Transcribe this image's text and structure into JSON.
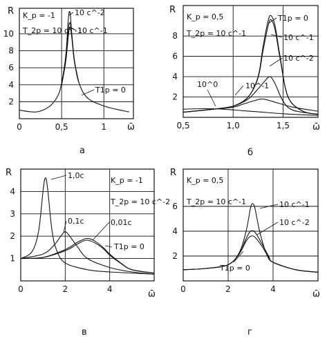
{
  "chart_data": [
    {
      "type": "line",
      "panel_label": "а",
      "ylabel": "R",
      "xlabel": "ω̄",
      "xlim": [
        0,
        1.35
      ],
      "ylim": [
        0,
        13
      ],
      "xticks": [
        0,
        0.5,
        1
      ],
      "xtick_labels": [
        "0",
        "0,5",
        "1"
      ],
      "yticks": [
        2,
        4,
        6,
        8,
        10
      ],
      "ytick_labels": [
        "2",
        "4",
        "6",
        "8",
        "10"
      ],
      "grid": true,
      "params": [
        "K_p = -1",
        "T_2p = 10 c^-1"
      ],
      "series": [
        {
          "name": "T1p = 0",
          "x": [
            0,
            0.2,
            0.35,
            0.45,
            0.5,
            0.55,
            0.58,
            0.6,
            0.62,
            0.65,
            0.7,
            0.8,
            1.0,
            1.2,
            1.3
          ],
          "y": [
            1.0,
            0.8,
            1.4,
            2.6,
            4.2,
            7.5,
            11.8,
            12.5,
            10.0,
            7.0,
            4.4,
            2.5,
            1.5,
            1.0,
            0.8
          ]
        },
        {
          "name": "10 c^-2",
          "x": [
            0.5,
            0.55,
            0.58,
            0.6,
            0.62,
            0.65,
            0.7
          ],
          "y": [
            4.0,
            7.0,
            10.5,
            11.3,
            10.0,
            7.0,
            4.4
          ]
        },
        {
          "name": "10 c^-1",
          "x": [
            0.5,
            0.55,
            0.58,
            0.6,
            0.62,
            0.65,
            0.7
          ],
          "y": [
            3.9,
            6.8,
            9.8,
            10.8,
            9.6,
            6.8,
            4.3
          ]
        }
      ],
      "annotations": [
        "10 c^-2",
        "10 c^-1",
        "T1p = 0"
      ]
    },
    {
      "type": "line",
      "panel_label": "б",
      "ylabel": "R",
      "xlabel": "ω̄",
      "xlim": [
        0.5,
        1.85
      ],
      "ylim": [
        0,
        11
      ],
      "xticks": [
        0.5,
        1.0,
        1.5
      ],
      "xtick_labels": [
        "0,5",
        "1,0",
        "1,5"
      ],
      "yticks": [
        2,
        4,
        6,
        8
      ],
      "ytick_labels": [
        "2",
        "4",
        "6",
        "8"
      ],
      "grid": true,
      "params": [
        "K_p = 0,5",
        "T_2p = 10 c^-1"
      ],
      "series": [
        {
          "name": "T1p = 0",
          "x": [
            0.5,
            0.8,
            1.0,
            1.15,
            1.25,
            1.3,
            1.35,
            1.38,
            1.42,
            1.47,
            1.55,
            1.7,
            1.85
          ],
          "y": [
            0.5,
            0.8,
            1.1,
            2.0,
            4.0,
            7.0,
            9.5,
            10.0,
            9.0,
            6.0,
            2.0,
            0.6,
            0.3
          ]
        },
        {
          "name": "10 c^-1",
          "x": [
            0.5,
            0.8,
            1.0,
            1.15,
            1.25,
            1.3,
            1.35,
            1.38,
            1.42,
            1.47,
            1.55,
            1.7,
            1.85
          ],
          "y": [
            0.5,
            0.8,
            1.1,
            2.0,
            3.9,
            6.6,
            9.0,
            9.6,
            8.6,
            5.8,
            2.0,
            0.6,
            0.3
          ]
        },
        {
          "name": "10 c^-2",
          "x": [
            0.5,
            0.8,
            1.0,
            1.15,
            1.25,
            1.32,
            1.37,
            1.42,
            1.5,
            1.6,
            1.85
          ],
          "y": [
            0.5,
            0.8,
            1.1,
            1.8,
            2.8,
            3.6,
            4.0,
            3.3,
            1.6,
            0.7,
            0.3
          ]
        },
        {
          "name": "10 c^-1 (low)",
          "x": [
            0.5,
            0.8,
            1.0,
            1.1,
            1.2,
            1.3,
            1.45,
            1.6,
            1.85
          ],
          "y": [
            0.5,
            0.8,
            1.0,
            1.3,
            1.6,
            1.8,
            1.4,
            1.0,
            0.6
          ]
        },
        {
          "name": "10 c^0",
          "x": [
            0.5,
            0.7,
            0.9,
            1.1,
            1.3,
            1.5,
            1.7,
            1.85
          ],
          "y": [
            0.8,
            0.85,
            0.8,
            0.65,
            0.5,
            0.35,
            0.25,
            0.2
          ]
        }
      ],
      "annotations": [
        "T1p = 0",
        "10 c^-1",
        "10 c^-2",
        "10^-1",
        "10^0"
      ]
    },
    {
      "type": "line",
      "panel_label": "в",
      "ylabel": "R",
      "xlabel": "ω̄",
      "xlim": [
        0,
        6
      ],
      "ylim": [
        0,
        5
      ],
      "xticks": [
        0,
        2,
        4
      ],
      "xtick_labels": [
        "0",
        "2",
        "4"
      ],
      "yticks": [
        1,
        2,
        3,
        4
      ],
      "ytick_labels": [
        "1",
        "2",
        "3",
        "4"
      ],
      "grid": true,
      "params": [
        "K_p = -1",
        "T_2p = 10 c^-2"
      ],
      "series": [
        {
          "name": "1,0c",
          "x": [
            0,
            0.5,
            0.8,
            1.0,
            1.1,
            1.2,
            1.4,
            1.6,
            2.0,
            3.0,
            4.0,
            6.0
          ],
          "y": [
            1.0,
            1.3,
            2.2,
            4.0,
            4.6,
            4.2,
            2.3,
            1.4,
            0.8,
            0.5,
            0.4,
            0.3
          ]
        },
        {
          "name": "0,1c",
          "x": [
            0,
            1.0,
            1.5,
            1.8,
            2.0,
            2.2,
            2.5,
            3.0,
            4.0,
            5.0,
            6.0
          ],
          "y": [
            1.0,
            1.2,
            1.6,
            2.0,
            2.2,
            2.0,
            1.6,
            1.0,
            0.6,
            0.4,
            0.3
          ]
        },
        {
          "name": "0,01c",
          "x": [
            0,
            1.0,
            2.0,
            2.5,
            2.8,
            3.0,
            3.3,
            3.7,
            4.0,
            4.5,
            5.0,
            6.0
          ],
          "y": [
            1.0,
            1.05,
            1.4,
            1.7,
            1.85,
            1.9,
            1.8,
            1.5,
            1.2,
            0.8,
            0.5,
            0.35
          ]
        },
        {
          "name": "T1p = 0",
          "x": [
            0,
            1.0,
            2.0,
            2.5,
            2.8,
            3.0,
            3.3,
            3.7,
            4.0,
            4.5,
            5.0,
            6.0
          ],
          "y": [
            1.0,
            1.05,
            1.35,
            1.62,
            1.78,
            1.82,
            1.72,
            1.45,
            1.15,
            0.78,
            0.5,
            0.35
          ]
        }
      ],
      "annotations": [
        "1,0c",
        "0,1c",
        "0,01c",
        "T1p = 0"
      ]
    },
    {
      "type": "line",
      "panel_label": "г",
      "ylabel": "R",
      "xlabel": "ω̄",
      "xlim": [
        0,
        6
      ],
      "ylim": [
        0,
        9
      ],
      "xticks": [
        0,
        2,
        4
      ],
      "xtick_labels": [
        "0",
        "2",
        "4"
      ],
      "yticks": [
        2,
        4,
        6
      ],
      "ytick_labels": [
        "2",
        "4",
        "6"
      ],
      "grid": true,
      "params": [
        "K_p = 0,5",
        "T_2p = 10 c^-1"
      ],
      "series": [
        {
          "name": "10 c^-1",
          "x": [
            0,
            1.0,
            2.0,
            2.5,
            2.8,
            3.0,
            3.1,
            3.2,
            3.4,
            3.7,
            4.0,
            5.0,
            6.0
          ],
          "y": [
            0.9,
            1.0,
            1.3,
            2.3,
            4.0,
            5.9,
            6.2,
            5.8,
            4.0,
            2.2,
            1.5,
            0.9,
            0.7
          ]
        },
        {
          "name": "10 c^-2",
          "x": [
            0,
            1.0,
            2.0,
            2.5,
            2.8,
            3.0,
            3.2,
            3.5,
            3.8,
            4.0,
            5.0,
            6.0
          ],
          "y": [
            0.9,
            1.0,
            1.3,
            2.2,
            3.4,
            4.0,
            3.9,
            3.0,
            2.0,
            1.5,
            0.9,
            0.7
          ]
        },
        {
          "name": "T1p = 0",
          "x": [
            0,
            1.0,
            2.0,
            2.5,
            2.8,
            3.0,
            3.2,
            3.5,
            3.8,
            4.0,
            5.0,
            6.0
          ],
          "y": [
            0.9,
            1.0,
            1.3,
            2.2,
            3.2,
            3.6,
            3.5,
            2.8,
            1.9,
            1.5,
            0.9,
            0.7
          ]
        }
      ],
      "annotations": [
        "10 c^-1",
        "10 c^-2",
        "T1p = 0"
      ]
    }
  ]
}
